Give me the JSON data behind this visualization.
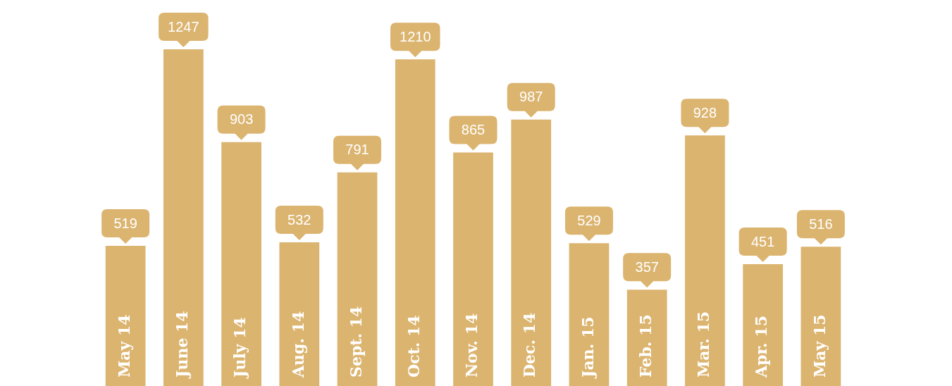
{
  "chart_data": {
    "type": "bar",
    "categories": [
      "May 14",
      "June 14",
      "July 14",
      "Aug. 14",
      "Sept. 14",
      "Oct. 14",
      "Nov. 14",
      "Dec. 14",
      "Jan. 15",
      "Feb. 15",
      "Mar. 15",
      "Apr. 15",
      "May 15"
    ],
    "values": [
      519,
      1247,
      903,
      532,
      791,
      1210,
      865,
      987,
      529,
      357,
      928,
      451,
      516
    ],
    "color": "#dbb46f",
    "data_labels": true,
    "legend": false
  }
}
